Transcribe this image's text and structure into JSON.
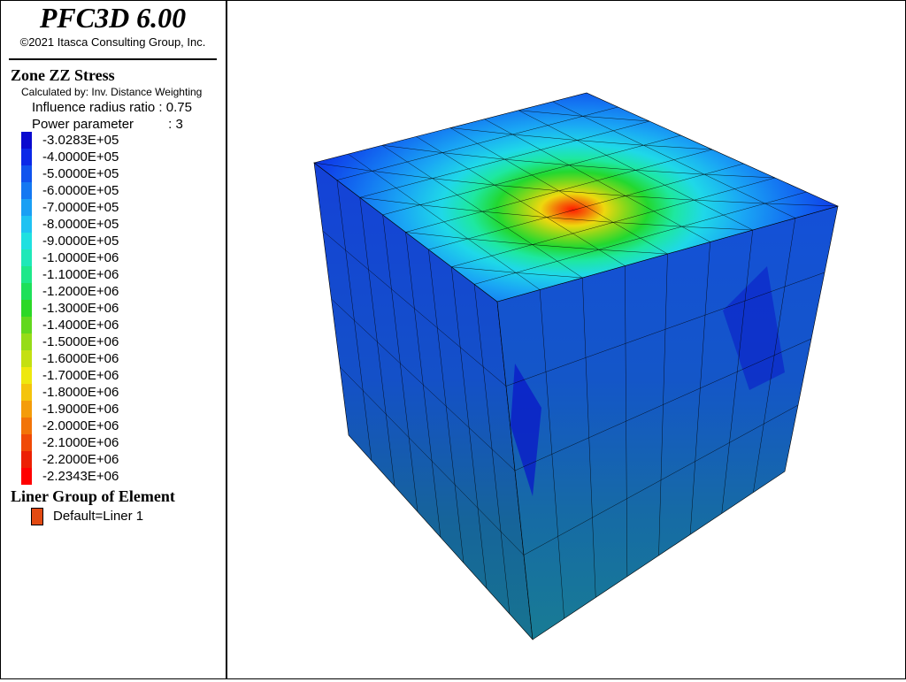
{
  "app": {
    "title": "PFC3D 6.00",
    "copyright": "©2021 Itasca Consulting Group, Inc."
  },
  "legend": {
    "zone_heading": "Zone ZZ Stress",
    "calculated_by": "Calculated by: Inv. Distance Weighting",
    "influence_label": "Influence radius ratio",
    "influence_value": ": 0.75",
    "power_label": "Power parameter",
    "power_value": ": 3",
    "scale": [
      {
        "label": "-3.0283E+05",
        "color": "#0a0acf"
      },
      {
        "label": "-4.0000E+05",
        "color": "#0b28e8"
      },
      {
        "label": "-5.0000E+05",
        "color": "#1053ee"
      },
      {
        "label": "-6.0000E+05",
        "color": "#1478f2"
      },
      {
        "label": "-7.0000E+05",
        "color": "#1a9ff4"
      },
      {
        "label": "-8.0000E+05",
        "color": "#1fc2f2"
      },
      {
        "label": "-9.0000E+05",
        "color": "#1fe0e0"
      },
      {
        "label": "-1.0000E+06",
        "color": "#1fe8b8"
      },
      {
        "label": "-1.1000E+06",
        "color": "#1ee88a"
      },
      {
        "label": "-1.2000E+06",
        "color": "#1ee05a"
      },
      {
        "label": "-1.3000E+06",
        "color": "#2cd826"
      },
      {
        "label": "-1.4000E+06",
        "color": "#62d81e"
      },
      {
        "label": "-1.5000E+06",
        "color": "#96dc18"
      },
      {
        "label": "-1.6000E+06",
        "color": "#c4e012"
      },
      {
        "label": "-1.7000E+06",
        "color": "#eee80e"
      },
      {
        "label": "-1.8000E+06",
        "color": "#f4c40c"
      },
      {
        "label": "-1.9000E+06",
        "color": "#f49c0a"
      },
      {
        "label": "-2.0000E+06",
        "color": "#f27408"
      },
      {
        "label": "-2.1000E+06",
        "color": "#f04a06"
      },
      {
        "label": "-2.2000E+06",
        "color": "#ec2004"
      },
      {
        "label": "-2.2343E+06",
        "color": "#ff0000"
      }
    ],
    "liner_heading": "Liner Group of Element",
    "liner_item": "Default=Liner 1",
    "liner_color": "#e24a12"
  }
}
